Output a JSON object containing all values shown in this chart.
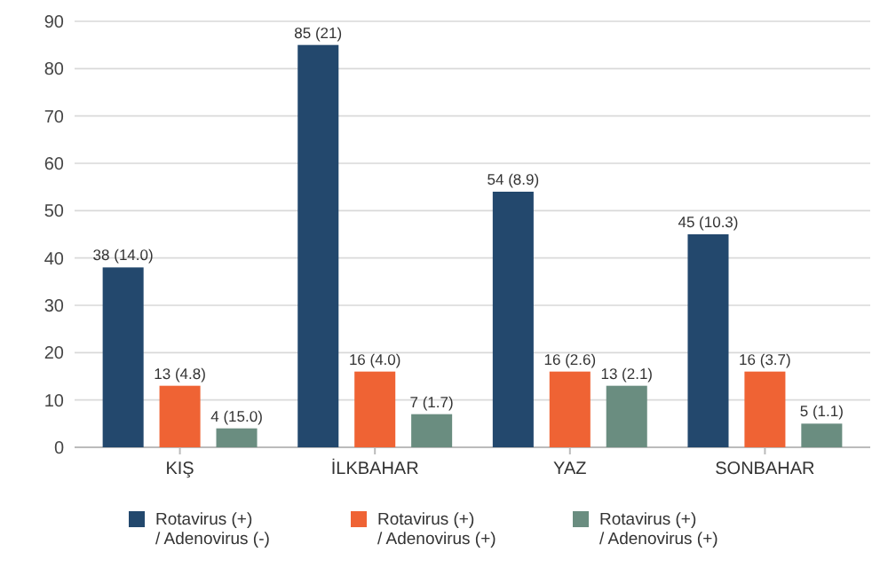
{
  "chart_data": {
    "type": "bar",
    "categories": [
      "KIŞ",
      "İLKBAHAR",
      "YAZ",
      "SONBAHAR"
    ],
    "series": [
      {
        "name": "Rotavirus (+)\n/ Adenovirus (-)",
        "color": "#23486d",
        "values": [
          38,
          85,
          54,
          45
        ],
        "value_labels": [
          "38 (14.0)",
          "85 (21)",
          "54 (8.9)",
          "45 (10.3)"
        ]
      },
      {
        "name": "Rotavirus (+)\n/ Adenovirus (+)",
        "color": "#ef6334",
        "values": [
          13,
          16,
          16,
          16
        ],
        "value_labels": [
          "13 (4.8)",
          "16 (4.0)",
          "16 (2.6)",
          "16 (3.7)"
        ]
      },
      {
        "name": "Rotavirus (+)\n/ Adenovirus (+)",
        "color": "#6a8d80",
        "values": [
          4,
          7,
          13,
          5
        ],
        "value_labels": [
          "4 (15.0)",
          "7 (1.7)",
          "13 (2.1)",
          "5 (1.1)"
        ]
      }
    ],
    "ylim": [
      0,
      90
    ],
    "yticks": [
      0,
      10,
      20,
      30,
      40,
      50,
      60,
      70,
      80,
      90
    ],
    "grid": "y",
    "legend": "bottom"
  }
}
